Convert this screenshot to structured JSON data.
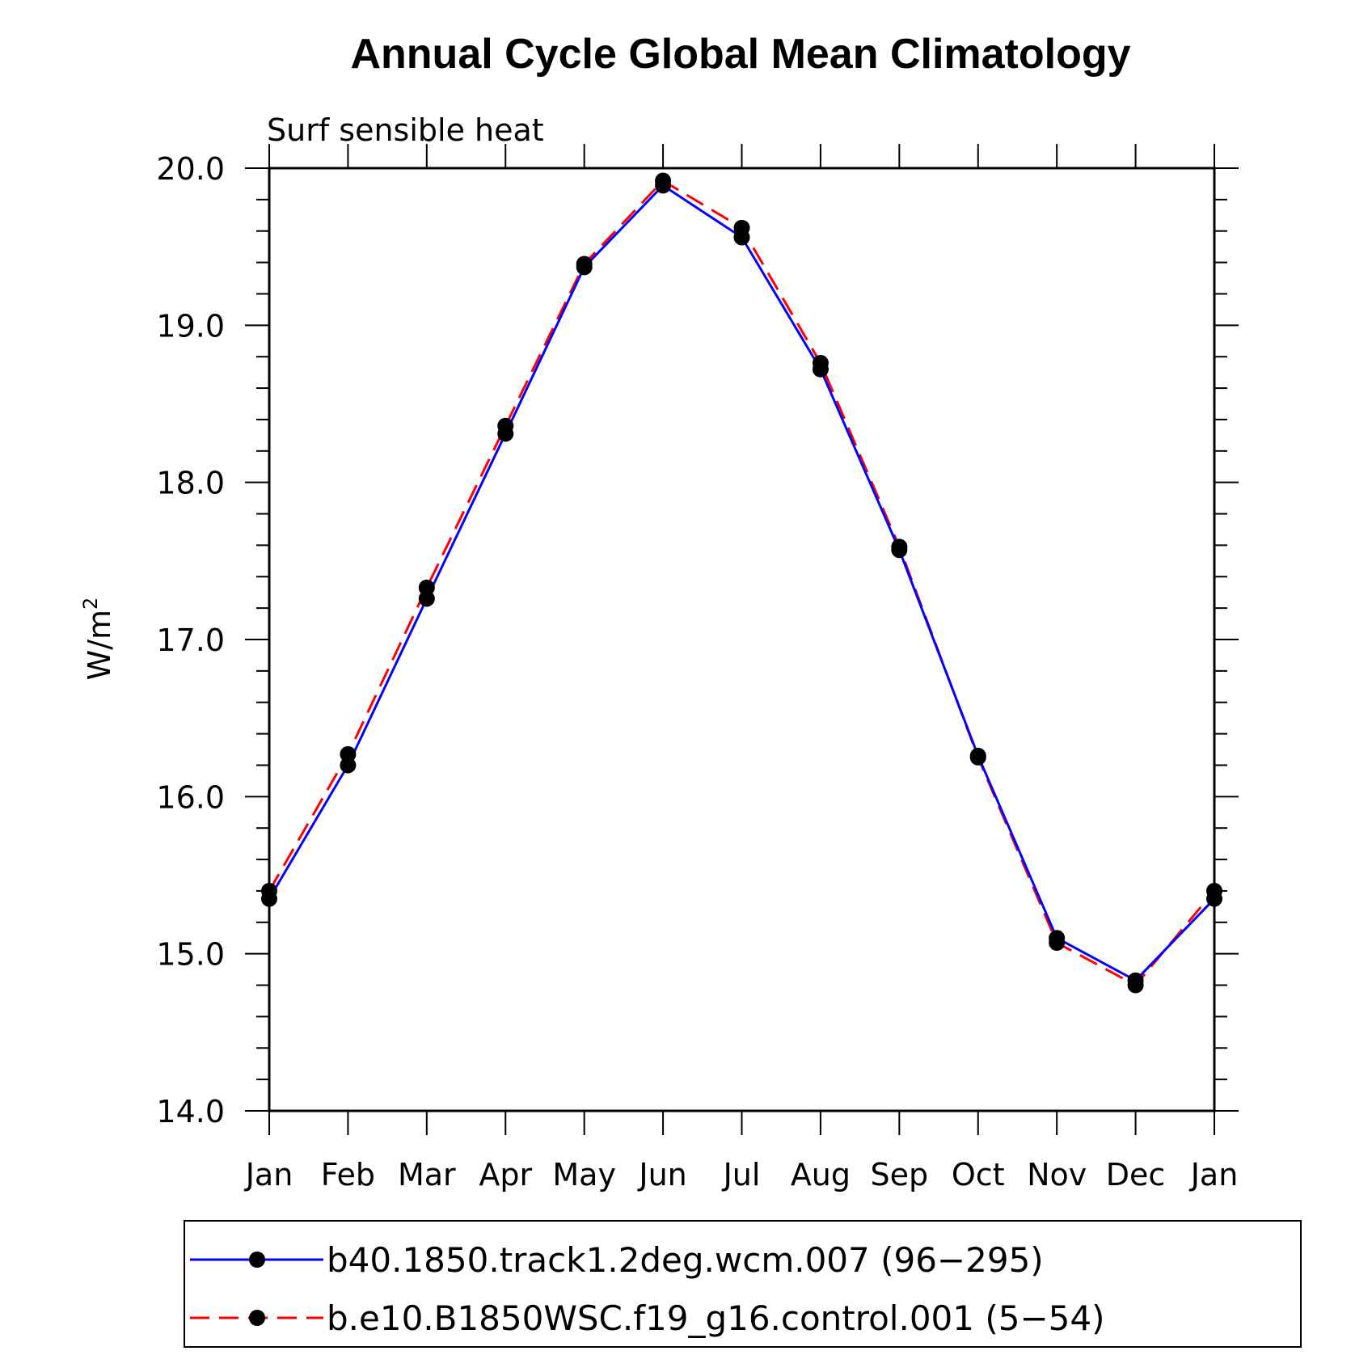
{
  "chart_data": {
    "type": "line",
    "title": "Annual Cycle Global Mean Climatology",
    "subtitle": "Surf sensible heat",
    "xlabel": "",
    "ylabel_base": "W/m",
    "ylabel_sup": "2",
    "categories": [
      "Jan",
      "Feb",
      "Mar",
      "Apr",
      "May",
      "Jun",
      "Jul",
      "Aug",
      "Sep",
      "Oct",
      "Nov",
      "Dec",
      "Jan"
    ],
    "ylim": [
      14.0,
      20.0
    ],
    "yticks": [
      "14.0",
      "15.0",
      "16.0",
      "17.0",
      "18.0",
      "19.0",
      "20.0"
    ],
    "grid": false,
    "legend_position": "bottom",
    "series": [
      {
        "name": "b40.1850.track1.2deg.wcm.007 (96−295)",
        "color": "#0000ff",
        "style": "solid",
        "values": [
          15.35,
          16.2,
          17.26,
          18.31,
          19.37,
          19.89,
          19.56,
          18.72,
          17.57,
          16.26,
          15.1,
          14.83,
          15.35
        ]
      },
      {
        "name": "b.e10.B1850WSC.f19_g16.control.001 (5−54)",
        "color": "#ff0000",
        "style": "dashed",
        "values": [
          15.4,
          16.27,
          17.33,
          18.36,
          19.39,
          19.92,
          19.62,
          18.76,
          17.59,
          16.25,
          15.07,
          14.8,
          15.4
        ]
      }
    ]
  }
}
